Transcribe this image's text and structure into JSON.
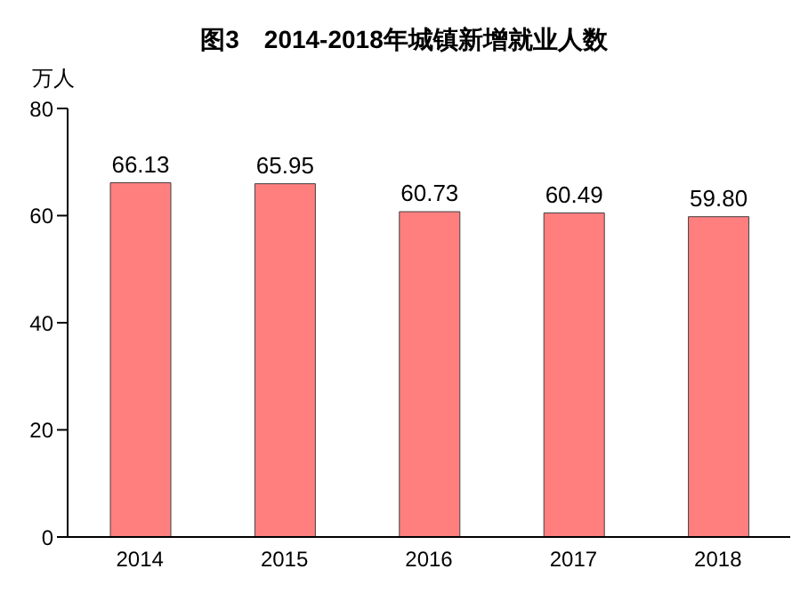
{
  "chart_data": {
    "type": "bar",
    "title": "图3　2014-2018年城镇新增就业人数",
    "ylabel": "万人",
    "categories": [
      "2014",
      "2015",
      "2016",
      "2017",
      "2018"
    ],
    "values": [
      66.13,
      65.95,
      60.73,
      60.49,
      59.8
    ],
    "color": "#ff7f7f",
    "value_labels": [
      "66.13",
      "65.95",
      "60.73",
      "60.49",
      "59.80"
    ],
    "ylim": [
      0,
      80
    ],
    "yticks": [
      0,
      20,
      40,
      60,
      80
    ],
    "grid": false,
    "legend": false
  }
}
